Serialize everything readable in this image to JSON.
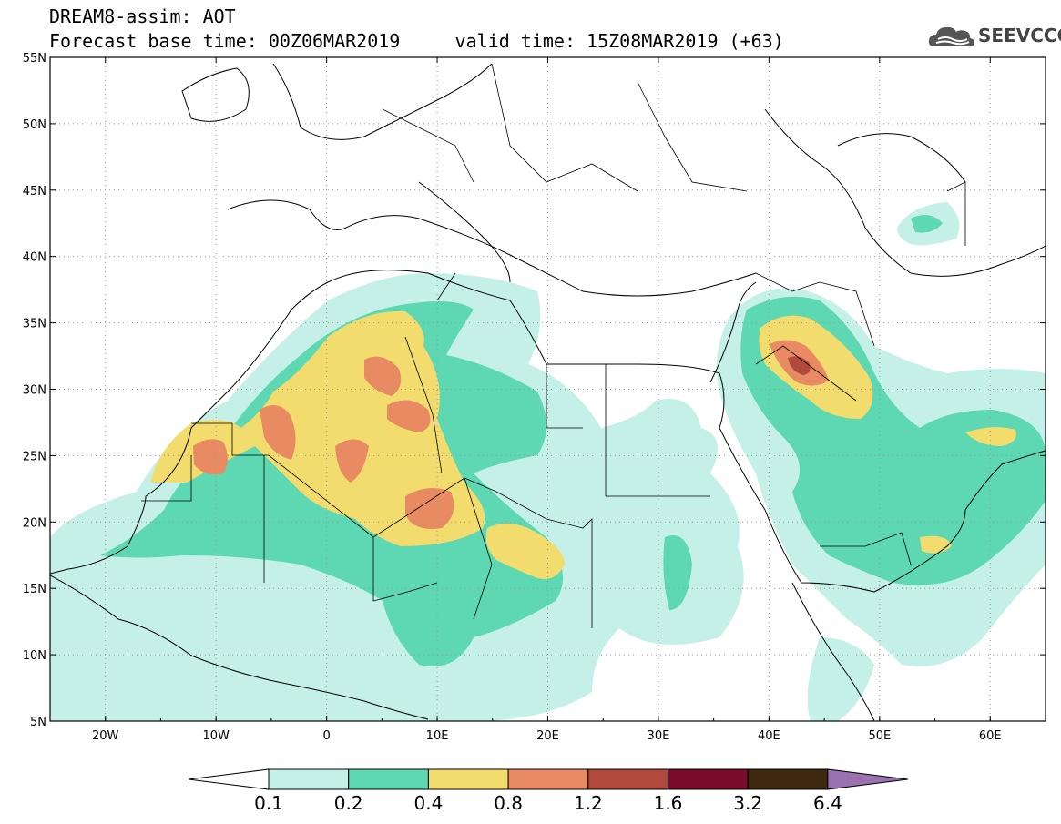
{
  "title": {
    "line1": "DREAM8-assim: AOT",
    "line2_base": "Forecast base time: 00Z06MAR2019",
    "line2_valid": "valid time: 15Z08MAR2019 (+63)"
  },
  "logo": {
    "text": "SEEVCCC",
    "icon": "cloud-icon"
  },
  "map": {
    "lon_range": [
      -25,
      65
    ],
    "lat_range": [
      5,
      55
    ],
    "lon_ticks": [
      {
        "value": -20,
        "label": "20W"
      },
      {
        "value": -10,
        "label": "10W"
      },
      {
        "value": 0,
        "label": "0"
      },
      {
        "value": 10,
        "label": "10E"
      },
      {
        "value": 20,
        "label": "20E"
      },
      {
        "value": 30,
        "label": "30E"
      },
      {
        "value": 40,
        "label": "40E"
      },
      {
        "value": 50,
        "label": "50E"
      },
      {
        "value": 60,
        "label": "60E"
      }
    ],
    "lat_ticks": [
      {
        "value": 55,
        "label": "55N"
      },
      {
        "value": 50,
        "label": "50N"
      },
      {
        "value": 45,
        "label": "45N"
      },
      {
        "value": 40,
        "label": "40N"
      },
      {
        "value": 35,
        "label": "35N"
      },
      {
        "value": 30,
        "label": "30N"
      },
      {
        "value": 25,
        "label": "25N"
      },
      {
        "value": 20,
        "label": "20N"
      },
      {
        "value": 15,
        "label": "15N"
      },
      {
        "value": 10,
        "label": "10N"
      },
      {
        "value": 5,
        "label": "5N"
      }
    ],
    "grid": "dotted"
  },
  "colorbar": {
    "labels": [
      "0.1",
      "0.2",
      "0.4",
      "0.8",
      "1.2",
      "1.6",
      "3.2",
      "6.4"
    ],
    "colors": [
      "#ffffff",
      "#c5f0e8",
      "#5ed8b2",
      "#f2dc6e",
      "#e88b62",
      "#b04a3c",
      "#7a0d2c",
      "#3e2810",
      "#9b72b0"
    ]
  }
}
